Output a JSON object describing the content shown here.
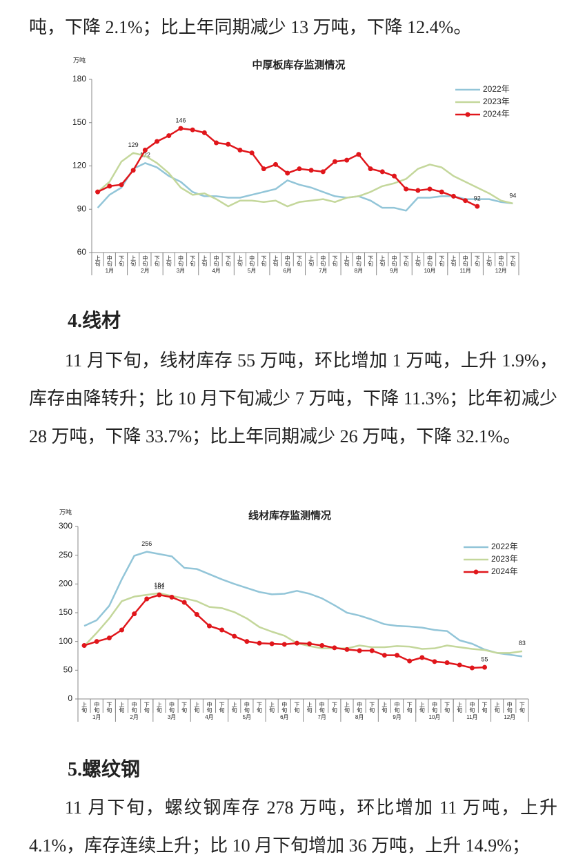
{
  "paragraphs": [
    "吨，下降 2.1%；比上年同期减少 13 万吨，下降 12.4%。",
    "11 月下旬，线材库存 55 万吨，环比增加 1 万吨，上升 1.9%，库存由降转升；比 10 月下旬减少 7 万吨，下降 11.3%；比年初减少 28 万吨，下降 33.7%；比上年同期减少 26 万吨，下降 32.1%。",
    "11 月下旬，螺纹钢库存 278 万吨，环比增加 11 万吨，上升 4.1%，库存连续上升；比 10 月下旬增加 36 万吨，上升 14.9%；"
  ],
  "headings": [
    "4.线材",
    "5.螺纹钢"
  ],
  "chart_data": [
    {
      "type": "line",
      "title": "中厚板库存监测情况",
      "y_unit": "万吨",
      "categories": [
        "上旬",
        "中旬",
        "下旬",
        "上旬",
        "中旬",
        "下旬",
        "上旬",
        "中旬",
        "下旬",
        "上旬",
        "中旬",
        "下旬",
        "上旬",
        "中旬",
        "下旬",
        "上旬",
        "中旬",
        "下旬",
        "上旬",
        "中旬",
        "下旬",
        "上旬",
        "中旬",
        "下旬",
        "上旬",
        "中旬",
        "下旬",
        "上旬",
        "中旬",
        "下旬",
        "上旬",
        "中旬",
        "下旬",
        "上旬",
        "中旬",
        "下旬"
      ],
      "months": [
        "1月",
        "2月",
        "3月",
        "4月",
        "5月",
        "6月",
        "7月",
        "8月",
        "9月",
        "10月",
        "11月",
        "12月"
      ],
      "ylim": [
        60,
        180
      ],
      "yticks": [
        60,
        90,
        120,
        150,
        180
      ],
      "legend": "top-right",
      "series": [
        {
          "name": "2022年",
          "color": "#92c5d8",
          "values": [
            91,
            100,
            105,
            118,
            122,
            119,
            113,
            109,
            102,
            99,
            99,
            98,
            98,
            100,
            102,
            104,
            110,
            107,
            105,
            102,
            99,
            98,
            99,
            96,
            91,
            91,
            89,
            98,
            98,
            99,
            99,
            97,
            97,
            97,
            95,
            94
          ],
          "value_labels": [
            null,
            null,
            null,
            null,
            "122",
            null,
            null,
            null,
            null,
            null,
            null,
            null,
            null,
            null,
            null,
            null,
            null,
            null,
            null,
            null,
            null,
            null,
            null,
            null,
            null,
            null,
            null,
            null,
            null,
            null,
            null,
            null,
            null,
            null,
            null,
            null
          ]
        },
        {
          "name": "2023年",
          "color": "#c4d79b",
          "values": [
            102,
            109,
            123,
            129,
            127,
            122,
            115,
            105,
            100,
            101,
            97,
            92,
            96,
            96,
            95,
            96,
            92,
            95,
            96,
            97,
            95,
            98,
            99,
            102,
            106,
            108,
            111,
            118,
            121,
            119,
            113,
            109,
            105,
            101,
            96,
            94
          ],
          "value_labels": [
            null,
            null,
            null,
            "129",
            null,
            null,
            null,
            null,
            null,
            null,
            null,
            null,
            null,
            null,
            null,
            null,
            null,
            null,
            null,
            null,
            null,
            null,
            null,
            null,
            null,
            null,
            null,
            null,
            null,
            null,
            null,
            null,
            null,
            null,
            null,
            "94"
          ]
        },
        {
          "name": "2024年",
          "color": "#e0161b",
          "marker": true,
          "values": [
            102,
            106,
            107,
            117,
            131,
            137,
            141,
            146,
            145,
            143,
            136,
            135,
            131,
            129,
            118,
            121,
            115,
            118,
            117,
            116,
            123,
            124,
            128,
            118,
            116,
            113,
            104,
            103,
            104,
            102,
            99,
            96,
            92,
            null,
            null,
            null
          ],
          "value_labels": [
            null,
            null,
            null,
            null,
            null,
            null,
            null,
            "146",
            null,
            null,
            null,
            null,
            null,
            null,
            null,
            null,
            null,
            null,
            null,
            null,
            null,
            null,
            null,
            null,
            null,
            null,
            null,
            null,
            null,
            null,
            null,
            null,
            "92",
            null,
            null,
            null
          ]
        }
      ]
    },
    {
      "type": "line",
      "title": "线材库存监测情况",
      "y_unit": "万吨",
      "categories": [
        "上旬",
        "中旬",
        "下旬",
        "上旬",
        "中旬",
        "下旬",
        "上旬",
        "中旬",
        "下旬",
        "上旬",
        "中旬",
        "下旬",
        "上旬",
        "中旬",
        "下旬",
        "上旬",
        "中旬",
        "下旬",
        "上旬",
        "中旬",
        "下旬",
        "上旬",
        "中旬",
        "下旬",
        "上旬",
        "中旬",
        "下旬",
        "上旬",
        "中旬",
        "下旬",
        "上旬",
        "中旬",
        "下旬",
        "上旬",
        "中旬",
        "下旬"
      ],
      "months": [
        "1月",
        "2月",
        "3月",
        "4月",
        "5月",
        "6月",
        "7月",
        "8月",
        "9月",
        "10月",
        "11月",
        "12月"
      ],
      "ylim": [
        0,
        300
      ],
      "yticks": [
        0,
        50,
        100,
        150,
        200,
        250,
        300
      ],
      "legend": "top-right",
      "series": [
        {
          "name": "2022年",
          "color": "#92c5d8",
          "values": [
            127,
            137,
            162,
            208,
            249,
            256,
            252,
            248,
            228,
            226,
            217,
            208,
            200,
            193,
            186,
            182,
            183,
            188,
            183,
            175,
            163,
            150,
            145,
            138,
            130,
            127,
            126,
            124,
            120,
            118,
            102,
            96,
            86,
            80,
            77,
            74
          ],
          "value_labels": [
            null,
            null,
            null,
            null,
            null,
            "256",
            null,
            null,
            null,
            null,
            null,
            null,
            null,
            null,
            null,
            null,
            null,
            null,
            null,
            null,
            null,
            null,
            null,
            null,
            null,
            null,
            null,
            null,
            null,
            null,
            null,
            null,
            null,
            null,
            null,
            null
          ]
        },
        {
          "name": "2023年",
          "color": "#c4d79b",
          "values": [
            92,
            115,
            140,
            170,
            178,
            181,
            184,
            179,
            175,
            170,
            160,
            158,
            151,
            140,
            125,
            117,
            110,
            97,
            92,
            88,
            88,
            88,
            93,
            90,
            90,
            92,
            91,
            87,
            88,
            93,
            90,
            87,
            85,
            80,
            80,
            83
          ],
          "value_labels": [
            null,
            null,
            null,
            null,
            null,
            null,
            "184",
            null,
            null,
            null,
            null,
            null,
            null,
            null,
            null,
            null,
            null,
            null,
            null,
            null,
            null,
            null,
            null,
            null,
            null,
            null,
            null,
            null,
            null,
            null,
            null,
            null,
            null,
            null,
            null,
            "83"
          ]
        },
        {
          "name": "2024年",
          "color": "#e0161b",
          "marker": true,
          "values": [
            93,
            100,
            106,
            120,
            148,
            174,
            181,
            177,
            168,
            147,
            127,
            120,
            109,
            100,
            97,
            96,
            95,
            97,
            96,
            93,
            89,
            86,
            84,
            84,
            76,
            76,
            66,
            72,
            65,
            63,
            59,
            54,
            55,
            null,
            null,
            null
          ],
          "value_labels": [
            null,
            null,
            null,
            null,
            null,
            null,
            "181",
            null,
            null,
            null,
            null,
            null,
            null,
            null,
            null,
            null,
            null,
            null,
            null,
            null,
            null,
            null,
            null,
            null,
            null,
            null,
            null,
            null,
            null,
            null,
            null,
            null,
            "55",
            null,
            null,
            null
          ]
        }
      ]
    }
  ]
}
